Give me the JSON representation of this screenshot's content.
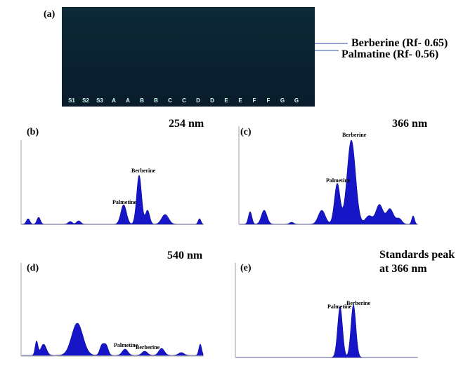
{
  "panel_a": {
    "label": "(a)",
    "lanes": [
      "S1",
      "S2",
      "S3",
      "A",
      "A",
      "B",
      "B",
      "C",
      "C",
      "D",
      "D",
      "E",
      "E",
      "F",
      "F",
      "G",
      "G"
    ],
    "band_labels": [
      "Berberine (Rf- 0.65)",
      "Palmatine (Rf- 0.56)"
    ]
  },
  "panel_b": {
    "label": "(b)",
    "wavelength": "254 nm",
    "peaks": [
      "Palmetine",
      "Berberine"
    ]
  },
  "panel_c": {
    "label": "(c)",
    "wavelength": "366 nm",
    "peaks": [
      "Palmetine",
      "Berberine"
    ]
  },
  "panel_d": {
    "label": "(d)",
    "wavelength": "540 nm",
    "peaks": [
      "Palmetine",
      "Berberine"
    ]
  },
  "panel_e": {
    "label": "(e)",
    "title_lines": [
      "Standards peak",
      "at 366 nm"
    ],
    "peaks": [
      "Palmetine",
      "Berberine"
    ]
  }
}
